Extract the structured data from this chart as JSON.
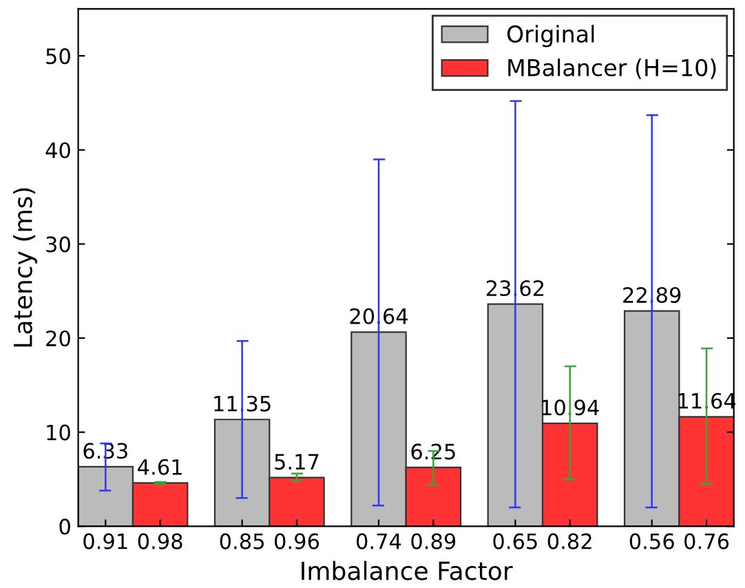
{
  "chart_data": {
    "type": "bar",
    "xlabel": "Imbalance Factor",
    "ylabel": "Latency (ms)",
    "categories": [
      "0.91",
      "0.98",
      "0.85",
      "0.96",
      "0.74",
      "0.89",
      "0.65",
      "0.82",
      "0.56",
      "0.76"
    ],
    "series": [
      {
        "name": "Original",
        "color": "#bbbbbb",
        "values": [
          6.33,
          null,
          11.35,
          null,
          20.64,
          null,
          23.62,
          null,
          22.89,
          null
        ],
        "errors": [
          [
            3.8,
            8.8
          ],
          null,
          [
            3.0,
            19.7
          ],
          null,
          [
            2.2,
            39.0
          ],
          null,
          [
            2.0,
            45.2
          ],
          null,
          [
            2.0,
            43.7
          ],
          null
        ]
      },
      {
        "name": "MBalancer (H=10)",
        "color": "#ff3333",
        "values": [
          null,
          4.61,
          null,
          5.17,
          null,
          6.25,
          null,
          10.94,
          null,
          11.64
        ],
        "errors": [
          null,
          [
            4.5,
            4.7
          ],
          null,
          [
            4.8,
            5.6
          ],
          null,
          [
            4.4,
            8.0
          ],
          null,
          [
            5.0,
            17.0
          ],
          null,
          [
            4.5,
            18.9
          ]
        ]
      }
    ],
    "ylim": [
      0,
      55
    ],
    "yticks": [
      0,
      10,
      20,
      30,
      40,
      50
    ],
    "data_labels": true,
    "legend": "top right",
    "grid": false
  }
}
